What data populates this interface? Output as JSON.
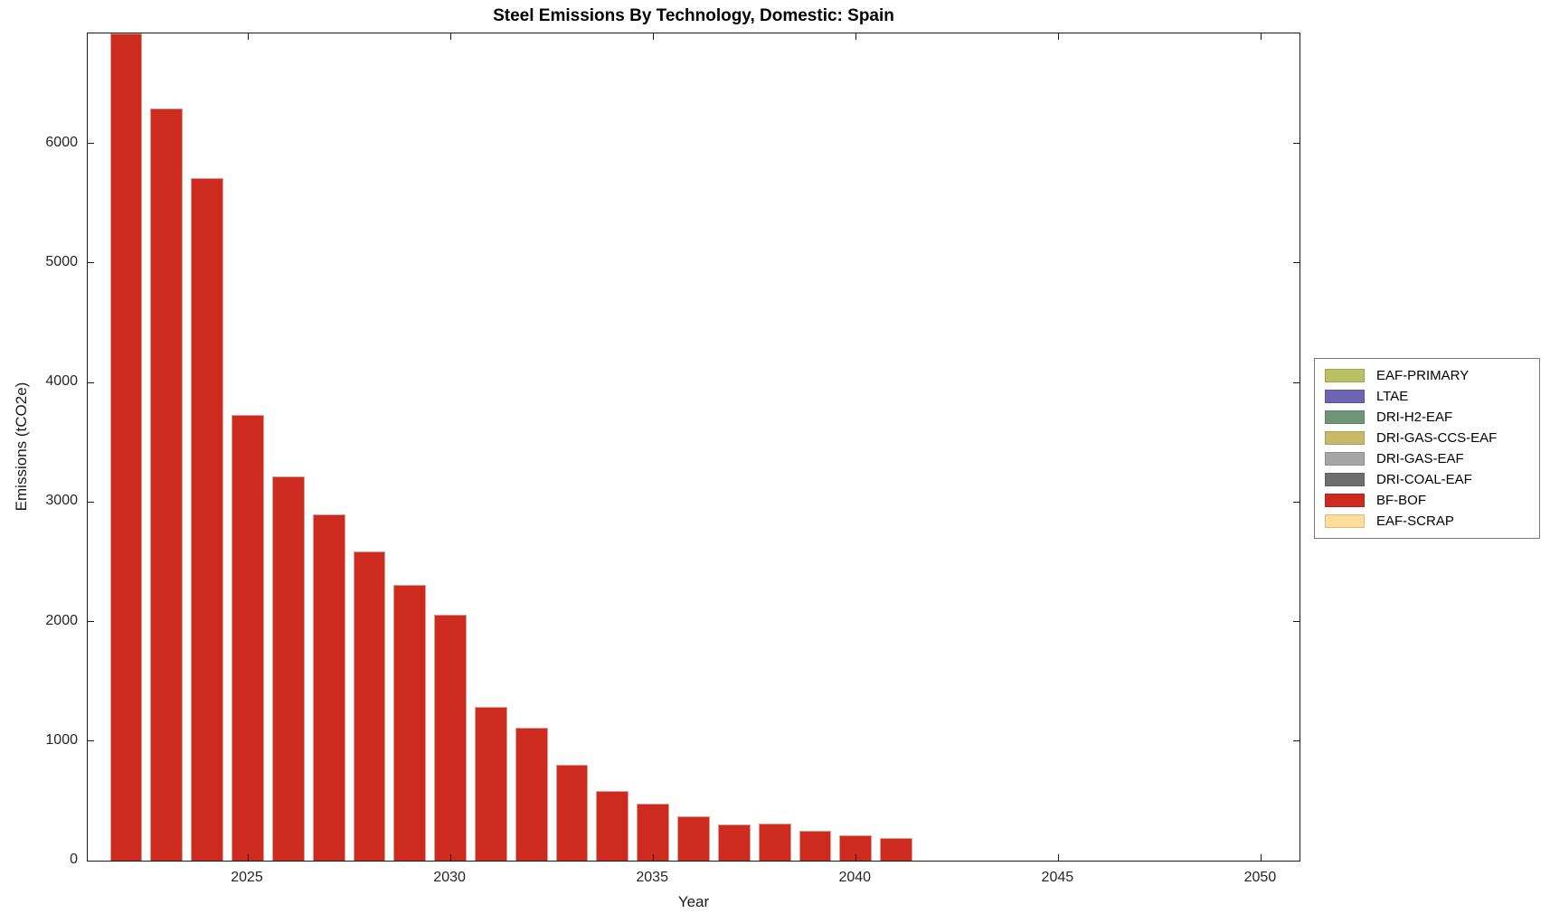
{
  "chart_data": {
    "type": "bar",
    "stacked": true,
    "title": "Steel Emissions By Technology, Domestic: Spain",
    "xlabel": "Year",
    "ylabel": "Emissions (tCO2e)",
    "xlim": [
      2021.05,
      2050.95
    ],
    "ylim": [
      0,
      6920
    ],
    "x_ticks": [
      2025,
      2030,
      2035,
      2040,
      2045,
      2050
    ],
    "y_ticks": [
      0,
      1000,
      2000,
      3000,
      4000,
      5000,
      6000
    ],
    "bar_width_fraction": 0.8,
    "bar_edge_color": "#dd9c92",
    "grid": false,
    "legend_position": "right-outside",
    "years": [
      2022,
      2023,
      2024,
      2025,
      2026,
      2027,
      2028,
      2029,
      2030,
      2031,
      2032,
      2033,
      2034,
      2035,
      2036,
      2037,
      2038,
      2039,
      2040,
      2041,
      2042,
      2043,
      2044,
      2045,
      2046,
      2047,
      2048,
      2049,
      2050
    ],
    "series": [
      {
        "name": "EAF-PRIMARY",
        "color": "#b9c163",
        "values": [
          0,
          0,
          0,
          0,
          0,
          0,
          0,
          0,
          0,
          0,
          0,
          0,
          0,
          0,
          0,
          0,
          0,
          0,
          0,
          0,
          0,
          0,
          0,
          0,
          0,
          0,
          0,
          0,
          0
        ]
      },
      {
        "name": "LTAE",
        "color": "#6f63b3",
        "values": [
          0,
          0,
          0,
          0,
          0,
          0,
          0,
          0,
          0,
          0,
          0,
          0,
          0,
          0,
          0,
          0,
          0,
          0,
          0,
          0,
          0,
          0,
          0,
          0,
          0,
          0,
          0,
          0,
          0
        ]
      },
      {
        "name": "DRI-H2-EAF",
        "color": "#709478",
        "values": [
          0,
          0,
          0,
          0,
          0,
          0,
          0,
          0,
          0,
          0,
          0,
          0,
          0,
          0,
          0,
          0,
          0,
          0,
          0,
          0,
          0,
          0,
          0,
          0,
          0,
          0,
          0,
          0,
          0
        ]
      },
      {
        "name": "DRI-GAS-CCS-EAF",
        "color": "#c6ba69",
        "values": [
          0,
          0,
          0,
          0,
          0,
          0,
          0,
          0,
          0,
          0,
          0,
          0,
          0,
          0,
          0,
          0,
          0,
          0,
          0,
          0,
          0,
          0,
          0,
          0,
          0,
          0,
          0,
          0,
          0
        ]
      },
      {
        "name": "DRI-GAS-EAF",
        "color": "#a6a6a6",
        "values": [
          0,
          0,
          0,
          0,
          0,
          0,
          0,
          0,
          0,
          0,
          0,
          0,
          0,
          0,
          0,
          0,
          0,
          0,
          0,
          0,
          0,
          0,
          0,
          0,
          0,
          0,
          0,
          0,
          0
        ]
      },
      {
        "name": "DRI-COAL-EAF",
        "color": "#6e6e6e",
        "values": [
          0,
          0,
          0,
          0,
          0,
          0,
          0,
          0,
          0,
          0,
          0,
          0,
          0,
          0,
          0,
          0,
          0,
          0,
          0,
          0,
          0,
          0,
          0,
          0,
          0,
          0,
          0,
          0,
          0
        ]
      },
      {
        "name": "BF-BOF",
        "color": "#cd2a20",
        "values": [
          6920,
          6290,
          5710,
          3730,
          3215,
          2900,
          2590,
          2310,
          2055,
          1285,
          1110,
          800,
          580,
          478,
          368,
          306,
          310,
          250,
          211,
          190,
          0,
          0,
          0,
          0,
          0,
          0,
          0,
          0,
          0
        ]
      },
      {
        "name": "EAF-SCRAP",
        "color": "#fcdd9a",
        "values": [
          0,
          0,
          0,
          0,
          0,
          0,
          0,
          0,
          0,
          0,
          0,
          0,
          0,
          0,
          0,
          0,
          0,
          0,
          0,
          0,
          0,
          0,
          0,
          0,
          0,
          0,
          0,
          0,
          0
        ]
      }
    ],
    "legend_order": [
      "EAF-PRIMARY",
      "LTAE",
      "DRI-H2-EAF",
      "DRI-GAS-CCS-EAF",
      "DRI-GAS-EAF",
      "DRI-COAL-EAF",
      "BF-BOF",
      "EAF-SCRAP"
    ]
  }
}
